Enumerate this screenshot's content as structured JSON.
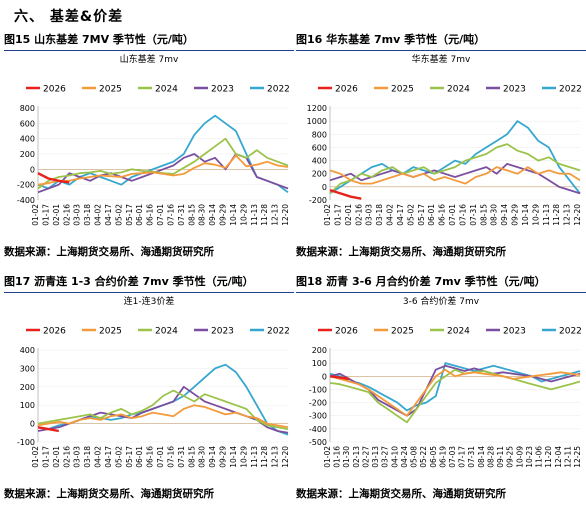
{
  "section_title": "六、  基差&价差",
  "legend_years": [
    "2026",
    "2025",
    "2024",
    "2023",
    "2022"
  ],
  "colors": {
    "2026": "#e8221b",
    "2025": "#f39a3b",
    "2024": "#9bc34a",
    "2023": "#7b4fa0",
    "2022": "#36a7cf"
  },
  "panels": [
    {
      "fig_title": "图15  山东基差 7MV 季节性（元/吨）",
      "source": "数据来源：上海期货交易所、海通期货研究所",
      "chart_data": {
        "type": "line",
        "title": "山东基差 7mv",
        "ylim": [
          -400,
          800
        ],
        "yticks": [
          -400,
          -200,
          0,
          200,
          400,
          600,
          800
        ],
        "xticks": [
          "01-02",
          "01-17",
          "02-01",
          "02-16",
          "03-03",
          "03-18",
          "04-02",
          "04-17",
          "05-02",
          "05-17",
          "06-01",
          "06-16",
          "07-01",
          "07-16",
          "07-31",
          "08-15",
          "08-30",
          "09-14",
          "09-29",
          "10-14",
          "10-29",
          "11-13",
          "11-28",
          "12-13",
          "12-20"
        ],
        "series": [
          {
            "name": "2026",
            "values": [
              -50,
              -120,
              -150,
              -170
            ]
          },
          {
            "name": "2025",
            "values": [
              -200,
              -180,
              -150,
              -150,
              -120,
              -100,
              -80,
              -90,
              -100,
              -60,
              -50,
              -40,
              -60,
              -80,
              -60,
              20,
              80,
              60,
              20,
              180,
              40,
              60,
              100,
              50,
              30
            ]
          },
          {
            "name": "2024",
            "values": [
              -250,
              -150,
              -100,
              -80,
              -50,
              -40,
              -20,
              -60,
              -40,
              0,
              -20,
              -30,
              -50,
              -60,
              20,
              100,
              200,
              300,
              400,
              200,
              150,
              250,
              150,
              100,
              50
            ]
          },
          {
            "name": "2023",
            "values": [
              -300,
              -250,
              -200,
              -50,
              -100,
              -150,
              -80,
              -50,
              -100,
              -150,
              -100,
              -50,
              0,
              50,
              150,
              200,
              100,
              150,
              0,
              200,
              150,
              -100,
              -150,
              -200,
              -250
            ]
          },
          {
            "name": "2022",
            "values": [
              -200,
              -250,
              -150,
              -200,
              -100,
              -50,
              -100,
              -150,
              -200,
              -100,
              -50,
              0,
              50,
              100,
              200,
              450,
              600,
              700,
              600,
              500,
              200,
              -100,
              -150,
              -200,
              -300
            ]
          }
        ]
      }
    },
    {
      "fig_title": "图16  华东基差 7mv 季节性（元/吨）",
      "source": "数据来源：上海期货交易所、海通期货研究所",
      "chart_data": {
        "type": "line",
        "title": "华东基差 7mv",
        "ylim": [
          -200,
          1200
        ],
        "yticks": [
          -200,
          0,
          200,
          400,
          600,
          800,
          1000,
          1200
        ],
        "xticks": [
          "01-02",
          "01-17",
          "02-01",
          "02-16",
          "03-03",
          "03-18",
          "04-02",
          "04-17",
          "05-02",
          "05-17",
          "06-01",
          "06-16",
          "07-01",
          "07-16",
          "07-31",
          "08-15",
          "08-30",
          "09-14",
          "09-29",
          "10-14",
          "10-29",
          "11-13",
          "11-28",
          "12-13",
          "12-20"
        ],
        "series": [
          {
            "name": "2026",
            "values": [
              -50,
              -100,
              -150,
              -180
            ]
          },
          {
            "name": "2025",
            "values": [
              250,
              200,
              100,
              50,
              50,
              100,
              150,
              200,
              150,
              200,
              100,
              150,
              100,
              50,
              150,
              200,
              300,
              250,
              200,
              300,
              200,
              250,
              200,
              200,
              100
            ]
          },
          {
            "name": "2024",
            "values": [
              -100,
              50,
              100,
              200,
              150,
              250,
              300,
              200,
              250,
              300,
              200,
              250,
              300,
              400,
              450,
              500,
              600,
              650,
              550,
              500,
              400,
              450,
              350,
              300,
              250
            ]
          },
          {
            "name": "2023",
            "values": [
              100,
              150,
              200,
              100,
              150,
              200,
              250,
              200,
              150,
              200,
              250,
              200,
              150,
              200,
              250,
              300,
              200,
              350,
              300,
              250,
              200,
              100,
              0,
              -50,
              -100
            ]
          },
          {
            "name": "2022",
            "values": [
              -100,
              0,
              100,
              200,
              300,
              350,
              250,
              200,
              300,
              250,
              200,
              300,
              400,
              350,
              500,
              600,
              700,
              800,
              1000,
              900,
              700,
              600,
              300,
              100,
              -100
            ]
          }
        ]
      }
    },
    {
      "fig_title": "图17  沥青连 1-3 合约价差 7mv 季节性（元/吨）",
      "source": "数据来源：上海期货交易所、海通期货研究所",
      "chart_data": {
        "type": "line",
        "title": "连1-连3价差",
        "ylim": [
          -100,
          400
        ],
        "yticks": [
          -100,
          0,
          100,
          200,
          300,
          400
        ],
        "xticks": [
          "01-02",
          "01-17",
          "02-01",
          "02-16",
          "03-03",
          "03-18",
          "04-02",
          "04-17",
          "05-02",
          "05-17",
          "06-01",
          "06-16",
          "07-01",
          "07-16",
          "07-31",
          "08-15",
          "08-30",
          "09-14",
          "09-29",
          "10-14",
          "10-29",
          "11-13",
          "11-28",
          "12-13",
          "12-20"
        ],
        "series": [
          {
            "name": "2026",
            "values": [
              -20,
              -30,
              -40
            ]
          },
          {
            "name": "2025",
            "values": [
              -10,
              0,
              10,
              0,
              20,
              30,
              20,
              40,
              50,
              30,
              40,
              60,
              50,
              40,
              80,
              100,
              90,
              70,
              50,
              60,
              40,
              30,
              0,
              -10,
              -20
            ]
          },
          {
            "name": "2024",
            "values": [
              0,
              10,
              20,
              30,
              40,
              50,
              30,
              60,
              80,
              50,
              70,
              100,
              150,
              180,
              150,
              120,
              160,
              140,
              120,
              100,
              80,
              20,
              -10,
              -20,
              -30
            ]
          },
          {
            "name": "2023",
            "values": [
              -40,
              -30,
              -20,
              0,
              20,
              40,
              60,
              50,
              40,
              30,
              60,
              80,
              100,
              120,
              200,
              160,
              120,
              100,
              80,
              60,
              40,
              20,
              -20,
              -40,
              -50
            ]
          },
          {
            "name": "2022",
            "values": [
              -20,
              -30,
              -10,
              0,
              20,
              40,
              30,
              20,
              30,
              50,
              60,
              80,
              100,
              120,
              150,
              200,
              250,
              300,
              320,
              280,
              200,
              100,
              0,
              -40,
              -60
            ]
          }
        ]
      }
    },
    {
      "fig_title": "图18  沥青 3-6 月合约价差 7mv 季节性（元/吨）",
      "source": "数据来源：上海期货交易所、海通期货研究所",
      "chart_data": {
        "type": "line",
        "title": "3-6 合约价差 7mv",
        "ylim": [
          -500,
          200
        ],
        "yticks": [
          -500,
          -400,
          -300,
          -200,
          -100,
          0,
          100,
          200
        ],
        "xticks": [
          "01-02",
          "01-16",
          "01-30",
          "02-13",
          "02-27",
          "03-13",
          "03-27",
          "04-10",
          "04-24",
          "05-08",
          "05-22",
          "06-05",
          "06-19",
          "07-03",
          "07-17",
          "07-31",
          "08-14",
          "08-28",
          "09-11",
          "09-25",
          "10-09",
          "10-23",
          "11-06",
          "11-20",
          "12-04",
          "12-11",
          "12-25"
        ],
        "series": [
          {
            "name": "2026",
            "values": [
              0,
              -10,
              -20
            ]
          },
          {
            "name": "2025",
            "values": [
              0,
              -20,
              -40,
              -60,
              -100,
              -150,
              -200,
              -250,
              -300,
              -200,
              -100,
              0,
              50,
              0,
              20,
              30,
              20,
              10,
              0,
              -20,
              -10,
              0,
              10,
              20,
              30,
              20,
              10
            ]
          },
          {
            "name": "2024",
            "values": [
              -50,
              -60,
              -80,
              -100,
              -120,
              -200,
              -250,
              -300,
              -350,
              -250,
              -150,
              -50,
              0,
              50,
              20,
              30,
              40,
              20,
              0,
              -20,
              -40,
              -60,
              -80,
              -100,
              -80,
              -60,
              -40
            ]
          },
          {
            "name": "2023",
            "values": [
              0,
              20,
              -20,
              -60,
              -100,
              -180,
              -220,
              -260,
              -300,
              -250,
              -100,
              50,
              80,
              60,
              40,
              60,
              40,
              20,
              30,
              20,
              10,
              0,
              -20,
              -40,
              -20,
              0,
              20
            ]
          },
          {
            "name": "2022",
            "values": [
              20,
              0,
              -40,
              -50,
              -80,
              -120,
              -160,
              -200,
              -260,
              -220,
              -200,
              -150,
              100,
              80,
              60,
              40,
              60,
              80,
              60,
              40,
              20,
              0,
              -40,
              -20,
              0,
              20,
              40
            ]
          }
        ]
      }
    }
  ]
}
